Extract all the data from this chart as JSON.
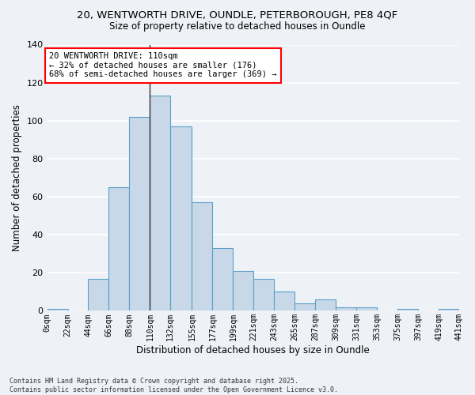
{
  "title1": "20, WENTWORTH DRIVE, OUNDLE, PETERBOROUGH, PE8 4QF",
  "title2": "Size of property relative to detached houses in Oundle",
  "xlabel": "Distribution of detached houses by size in Oundle",
  "ylabel": "Number of detached properties",
  "bar_values": [
    1,
    0,
    17,
    65,
    102,
    113,
    97,
    57,
    33,
    21,
    17,
    10,
    4,
    6,
    2,
    2,
    0,
    1,
    0,
    1
  ],
  "bin_edges": [
    0,
    22,
    44,
    66,
    88,
    110,
    132,
    155,
    177,
    199,
    221,
    243,
    265,
    287,
    309,
    331,
    353,
    375,
    397,
    419,
    441
  ],
  "bar_color": "#c8d8e8",
  "bar_edge_color": "#5a9fc8",
  "property_size": 110,
  "annotation_line1": "20 WENTWORTH DRIVE: 110sqm",
  "annotation_line2": "← 32% of detached houses are smaller (176)",
  "annotation_line3": "68% of semi-detached houses are larger (369) →",
  "annotation_box_color": "white",
  "annotation_box_edge_color": "red",
  "vline_color": "#333333",
  "ylim": [
    0,
    140
  ],
  "yticks": [
    0,
    20,
    40,
    60,
    80,
    100,
    120,
    140
  ],
  "tick_labels": [
    "0sqm",
    "22sqm",
    "44sqm",
    "66sqm",
    "88sqm",
    "110sqm",
    "132sqm",
    "155sqm",
    "177sqm",
    "199sqm",
    "221sqm",
    "243sqm",
    "265sqm",
    "287sqm",
    "309sqm",
    "331sqm",
    "353sqm",
    "375sqm",
    "397sqm",
    "419sqm",
    "441sqm"
  ],
  "footer": "Contains HM Land Registry data © Crown copyright and database right 2025.\nContains public sector information licensed under the Open Government Licence v3.0.",
  "bg_color": "#eef2f7",
  "grid_color": "#ffffff"
}
